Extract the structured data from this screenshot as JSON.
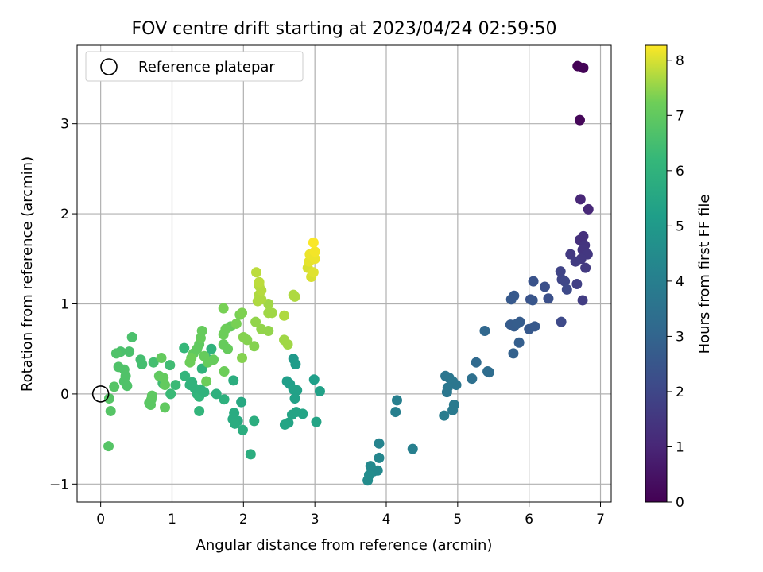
{
  "chart_data": {
    "type": "scatter",
    "title": "FOV centre drift starting at 2023/04/24 02:59:50",
    "xlabel": "Angular distance from reference (arcmin)",
    "ylabel": "Rotation from reference (arcmin)",
    "xlim": [
      -0.33,
      7.15
    ],
    "ylim": [
      -1.2,
      3.87
    ],
    "xticks": [
      0,
      1,
      2,
      3,
      4,
      5,
      6,
      7
    ],
    "xtick_labels": [
      "0",
      "1",
      "2",
      "3",
      "4",
      "5",
      "6",
      "7"
    ],
    "yticks": [
      -1,
      0,
      1,
      2,
      3
    ],
    "ytick_labels": [
      "−1",
      "0",
      "1",
      "2",
      "3"
    ],
    "grid": true,
    "legend": {
      "placement": "top-left",
      "entries": [
        {
          "label": "Reference platepar",
          "marker": "open-circle"
        }
      ]
    },
    "reference_point": {
      "x": 0,
      "y": 0
    },
    "colorbar": {
      "label": "Hours from first FF file",
      "colormap": "viridis",
      "range": [
        0,
        8.27
      ],
      "ticks": [
        0,
        1,
        2,
        3,
        4,
        5,
        6,
        7,
        8
      ],
      "tick_labels": [
        "0",
        "1",
        "2",
        "3",
        "4",
        "5",
        "6",
        "7",
        "8"
      ]
    },
    "points": [
      {
        "x": 6.68,
        "y": 3.64,
        "c": 0.05
      },
      {
        "x": 6.76,
        "y": 3.62,
        "c": 0.1
      },
      {
        "x": 6.71,
        "y": 3.04,
        "c": 0.15
      },
      {
        "x": 6.72,
        "y": 2.16,
        "c": 1.0
      },
      {
        "x": 6.83,
        "y": 2.05,
        "c": 1.05
      },
      {
        "x": 6.76,
        "y": 1.75,
        "c": 1.3
      },
      {
        "x": 6.71,
        "y": 1.71,
        "c": 1.3
      },
      {
        "x": 6.78,
        "y": 1.65,
        "c": 1.4
      },
      {
        "x": 6.75,
        "y": 1.6,
        "c": 1.45
      },
      {
        "x": 6.82,
        "y": 1.55,
        "c": 1.5
      },
      {
        "x": 6.58,
        "y": 1.55,
        "c": 1.6
      },
      {
        "x": 6.73,
        "y": 1.5,
        "c": 1.55
      },
      {
        "x": 6.65,
        "y": 1.47,
        "c": 1.65
      },
      {
        "x": 6.79,
        "y": 1.4,
        "c": 1.6
      },
      {
        "x": 6.44,
        "y": 1.36,
        "c": 1.9
      },
      {
        "x": 6.46,
        "y": 1.27,
        "c": 1.95
      },
      {
        "x": 6.5,
        "y": 1.25,
        "c": 2.0
      },
      {
        "x": 6.67,
        "y": 1.22,
        "c": 1.8
      },
      {
        "x": 6.53,
        "y": 1.16,
        "c": 2.1
      },
      {
        "x": 6.75,
        "y": 1.04,
        "c": 1.7
      },
      {
        "x": 6.06,
        "y": 1.25,
        "c": 2.4
      },
      {
        "x": 6.22,
        "y": 1.19,
        "c": 2.3
      },
      {
        "x": 6.27,
        "y": 1.06,
        "c": 2.3
      },
      {
        "x": 6.02,
        "y": 1.05,
        "c": 2.4
      },
      {
        "x": 6.05,
        "y": 1.04,
        "c": 2.5
      },
      {
        "x": 5.79,
        "y": 1.09,
        "c": 2.6
      },
      {
        "x": 5.75,
        "y": 1.05,
        "c": 2.6
      },
      {
        "x": 5.74,
        "y": 0.77,
        "c": 2.7
      },
      {
        "x": 5.79,
        "y": 0.75,
        "c": 2.7
      },
      {
        "x": 5.87,
        "y": 0.8,
        "c": 2.7
      },
      {
        "x": 5.83,
        "y": 0.78,
        "c": 2.75
      },
      {
        "x": 6.0,
        "y": 0.72,
        "c": 2.6
      },
      {
        "x": 6.08,
        "y": 0.75,
        "c": 2.6
      },
      {
        "x": 6.45,
        "y": 0.8,
        "c": 2.1
      },
      {
        "x": 5.86,
        "y": 0.57,
        "c": 2.8
      },
      {
        "x": 5.78,
        "y": 0.45,
        "c": 2.9
      },
      {
        "x": 5.38,
        "y": 0.7,
        "c": 3.1
      },
      {
        "x": 5.26,
        "y": 0.35,
        "c": 3.2
      },
      {
        "x": 5.42,
        "y": 0.25,
        "c": 3.3
      },
      {
        "x": 5.44,
        "y": 0.24,
        "c": 3.3
      },
      {
        "x": 5.2,
        "y": 0.17,
        "c": 3.4
      },
      {
        "x": 4.83,
        "y": 0.2,
        "c": 3.6
      },
      {
        "x": 4.88,
        "y": 0.18,
        "c": 3.65
      },
      {
        "x": 4.93,
        "y": 0.14,
        "c": 3.7
      },
      {
        "x": 4.98,
        "y": 0.1,
        "c": 3.65
      },
      {
        "x": 4.86,
        "y": 0.07,
        "c": 3.7
      },
      {
        "x": 4.85,
        "y": 0.02,
        "c": 3.7
      },
      {
        "x": 4.95,
        "y": -0.12,
        "c": 3.8
      },
      {
        "x": 4.93,
        "y": -0.18,
        "c": 3.8
      },
      {
        "x": 4.81,
        "y": -0.24,
        "c": 3.9
      },
      {
        "x": 4.15,
        "y": -0.07,
        "c": 4.0
      },
      {
        "x": 4.13,
        "y": -0.2,
        "c": 4.0
      },
      {
        "x": 4.37,
        "y": -0.61,
        "c": 4.0
      },
      {
        "x": 3.9,
        "y": -0.55,
        "c": 4.2
      },
      {
        "x": 3.9,
        "y": -0.71,
        "c": 4.3
      },
      {
        "x": 3.78,
        "y": -0.8,
        "c": 4.4
      },
      {
        "x": 3.88,
        "y": -0.85,
        "c": 4.4
      },
      {
        "x": 3.82,
        "y": -0.86,
        "c": 4.4
      },
      {
        "x": 3.76,
        "y": -0.9,
        "c": 4.5
      },
      {
        "x": 3.74,
        "y": -0.96,
        "c": 4.5
      },
      {
        "x": 2.7,
        "y": 0.39,
        "c": 5.0
      },
      {
        "x": 2.73,
        "y": 0.33,
        "c": 5.1
      },
      {
        "x": 2.61,
        "y": 0.14,
        "c": 5.2
      },
      {
        "x": 2.65,
        "y": 0.11,
        "c": 5.2
      },
      {
        "x": 2.7,
        "y": 0.05,
        "c": 5.3
      },
      {
        "x": 2.75,
        "y": 0.04,
        "c": 5.3
      },
      {
        "x": 2.72,
        "y": -0.05,
        "c": 5.3
      },
      {
        "x": 2.99,
        "y": 0.16,
        "c": 5.2
      },
      {
        "x": 3.07,
        "y": 0.03,
        "c": 5.3
      },
      {
        "x": 2.74,
        "y": -0.2,
        "c": 5.4
      },
      {
        "x": 2.83,
        "y": -0.22,
        "c": 5.4
      },
      {
        "x": 2.68,
        "y": -0.23,
        "c": 5.4
      },
      {
        "x": 2.63,
        "y": -0.32,
        "c": 5.4
      },
      {
        "x": 2.58,
        "y": -0.34,
        "c": 5.45
      },
      {
        "x": 3.02,
        "y": -0.31,
        "c": 5.4
      },
      {
        "x": 1.97,
        "y": -0.09,
        "c": 5.6
      },
      {
        "x": 1.87,
        "y": -0.21,
        "c": 5.7
      },
      {
        "x": 1.92,
        "y": -0.3,
        "c": 5.7
      },
      {
        "x": 1.85,
        "y": -0.28,
        "c": 5.7
      },
      {
        "x": 1.88,
        "y": -0.33,
        "c": 5.75
      },
      {
        "x": 1.99,
        "y": -0.4,
        "c": 5.8
      },
      {
        "x": 2.15,
        "y": -0.3,
        "c": 5.8
      },
      {
        "x": 2.1,
        "y": -0.67,
        "c": 5.8
      },
      {
        "x": 1.73,
        "y": -0.06,
        "c": 5.9
      },
      {
        "x": 1.86,
        "y": 0.15,
        "c": 5.8
      },
      {
        "x": 1.62,
        "y": 0.0,
        "c": 5.9
      },
      {
        "x": 1.25,
        "y": 0.1,
        "c": 6.0
      },
      {
        "x": 1.32,
        "y": 0.06,
        "c": 6.0
      },
      {
        "x": 1.35,
        "y": 0.0,
        "c": 6.0
      },
      {
        "x": 1.38,
        "y": -0.03,
        "c": 6.1
      },
      {
        "x": 1.45,
        "y": 0.02,
        "c": 6.0
      },
      {
        "x": 1.4,
        "y": 0.05,
        "c": 6.0
      },
      {
        "x": 1.28,
        "y": 0.13,
        "c": 6.0
      },
      {
        "x": 1.18,
        "y": 0.2,
        "c": 6.1
      },
      {
        "x": 1.42,
        "y": 0.28,
        "c": 6.0
      },
      {
        "x": 1.48,
        "y": 0.4,
        "c": 6.0
      },
      {
        "x": 1.55,
        "y": 0.5,
        "c": 6.0
      },
      {
        "x": 1.38,
        "y": -0.19,
        "c": 6.1
      },
      {
        "x": 1.17,
        "y": 0.51,
        "c": 6.2
      },
      {
        "x": 1.05,
        "y": 0.1,
        "c": 6.3
      },
      {
        "x": 0.98,
        "y": 0.0,
        "c": 6.3
      },
      {
        "x": 0.87,
        "y": 0.12,
        "c": 6.4
      },
      {
        "x": 0.97,
        "y": 0.32,
        "c": 6.4
      },
      {
        "x": 0.74,
        "y": 0.35,
        "c": 6.5
      },
      {
        "x": 0.56,
        "y": 0.38,
        "c": 6.5
      },
      {
        "x": 0.58,
        "y": 0.33,
        "c": 6.5
      },
      {
        "x": 0.44,
        "y": 0.63,
        "c": 6.6
      },
      {
        "x": 0.4,
        "y": 0.47,
        "c": 6.6
      },
      {
        "x": 0.28,
        "y": 0.47,
        "c": 6.6
      },
      {
        "x": 0.22,
        "y": 0.45,
        "c": 6.7
      },
      {
        "x": 0.25,
        "y": 0.3,
        "c": 6.7
      },
      {
        "x": 0.33,
        "y": 0.27,
        "c": 6.7
      },
      {
        "x": 0.35,
        "y": 0.2,
        "c": 6.7
      },
      {
        "x": 0.33,
        "y": 0.14,
        "c": 6.7
      },
      {
        "x": 0.37,
        "y": 0.09,
        "c": 6.7
      },
      {
        "x": 0.19,
        "y": 0.08,
        "c": 6.8
      },
      {
        "x": 0.12,
        "y": -0.05,
        "c": 6.8
      },
      {
        "x": 0.14,
        "y": -0.19,
        "c": 6.8
      },
      {
        "x": 0.11,
        "y": -0.58,
        "c": 6.8
      },
      {
        "x": 0.71,
        "y": -0.06,
        "c": 6.9
      },
      {
        "x": 0.68,
        "y": -0.1,
        "c": 6.9
      },
      {
        "x": 0.7,
        "y": -0.12,
        "c": 6.9
      },
      {
        "x": 0.72,
        "y": -0.02,
        "c": 6.95
      },
      {
        "x": 0.9,
        "y": -0.15,
        "c": 7.0
      },
      {
        "x": 0.82,
        "y": 0.2,
        "c": 7.0
      },
      {
        "x": 0.85,
        "y": 0.4,
        "c": 7.05
      },
      {
        "x": 0.88,
        "y": 0.18,
        "c": 7.05
      },
      {
        "x": 0.9,
        "y": 0.1,
        "c": 7.05
      },
      {
        "x": 1.3,
        "y": 0.45,
        "c": 7.0
      },
      {
        "x": 1.35,
        "y": 0.5,
        "c": 7.0
      },
      {
        "x": 1.38,
        "y": 0.55,
        "c": 7.0
      },
      {
        "x": 1.4,
        "y": 0.62,
        "c": 7.1
      },
      {
        "x": 1.42,
        "y": 0.7,
        "c": 7.1
      },
      {
        "x": 1.45,
        "y": 0.42,
        "c": 7.1
      },
      {
        "x": 1.5,
        "y": 0.35,
        "c": 7.1
      },
      {
        "x": 1.58,
        "y": 0.38,
        "c": 7.1
      },
      {
        "x": 1.25,
        "y": 0.35,
        "c": 7.2
      },
      {
        "x": 1.27,
        "y": 0.4,
        "c": 7.2
      },
      {
        "x": 1.72,
        "y": 0.55,
        "c": 7.1
      },
      {
        "x": 1.78,
        "y": 0.5,
        "c": 7.1
      },
      {
        "x": 1.82,
        "y": 0.75,
        "c": 7.1
      },
      {
        "x": 1.75,
        "y": 0.72,
        "c": 7.2
      },
      {
        "x": 1.72,
        "y": 0.66,
        "c": 7.2
      },
      {
        "x": 1.73,
        "y": 0.25,
        "c": 7.2
      },
      {
        "x": 1.48,
        "y": 0.14,
        "c": 7.2
      },
      {
        "x": 1.72,
        "y": 0.95,
        "c": 7.3
      },
      {
        "x": 1.9,
        "y": 0.78,
        "c": 7.3
      },
      {
        "x": 1.95,
        "y": 0.88,
        "c": 7.3
      },
      {
        "x": 1.98,
        "y": 0.9,
        "c": 7.35
      },
      {
        "x": 2.0,
        "y": 0.63,
        "c": 7.4
      },
      {
        "x": 2.05,
        "y": 0.6,
        "c": 7.4
      },
      {
        "x": 2.15,
        "y": 0.53,
        "c": 7.4
      },
      {
        "x": 1.98,
        "y": 0.4,
        "c": 7.4
      },
      {
        "x": 2.17,
        "y": 0.8,
        "c": 7.5
      },
      {
        "x": 2.25,
        "y": 0.72,
        "c": 7.5
      },
      {
        "x": 2.35,
        "y": 0.7,
        "c": 7.5
      },
      {
        "x": 2.35,
        "y": 0.9,
        "c": 7.6
      },
      {
        "x": 2.4,
        "y": 0.9,
        "c": 7.6
      },
      {
        "x": 2.35,
        "y": 1.0,
        "c": 7.6
      },
      {
        "x": 2.2,
        "y": 1.03,
        "c": 7.7
      },
      {
        "x": 2.25,
        "y": 1.05,
        "c": 7.7
      },
      {
        "x": 2.22,
        "y": 1.1,
        "c": 7.7
      },
      {
        "x": 2.25,
        "y": 1.15,
        "c": 7.75
      },
      {
        "x": 2.22,
        "y": 1.2,
        "c": 7.75
      },
      {
        "x": 2.22,
        "y": 1.24,
        "c": 7.8
      },
      {
        "x": 2.18,
        "y": 1.35,
        "c": 7.8
      },
      {
        "x": 2.7,
        "y": 1.1,
        "c": 7.7
      },
      {
        "x": 2.72,
        "y": 1.08,
        "c": 7.7
      },
      {
        "x": 2.57,
        "y": 0.87,
        "c": 7.7
      },
      {
        "x": 2.57,
        "y": 0.6,
        "c": 7.6
      },
      {
        "x": 2.62,
        "y": 0.55,
        "c": 7.6
      },
      {
        "x": 2.9,
        "y": 1.4,
        "c": 8.0
      },
      {
        "x": 2.95,
        "y": 1.3,
        "c": 8.0
      },
      {
        "x": 2.98,
        "y": 1.35,
        "c": 8.05
      },
      {
        "x": 2.92,
        "y": 1.47,
        "c": 8.1
      },
      {
        "x": 2.95,
        "y": 1.52,
        "c": 8.1
      },
      {
        "x": 3.0,
        "y": 1.5,
        "c": 8.15
      },
      {
        "x": 2.93,
        "y": 1.55,
        "c": 8.15
      },
      {
        "x": 3.0,
        "y": 1.58,
        "c": 8.2
      },
      {
        "x": 2.98,
        "y": 1.68,
        "c": 8.25
      }
    ]
  }
}
